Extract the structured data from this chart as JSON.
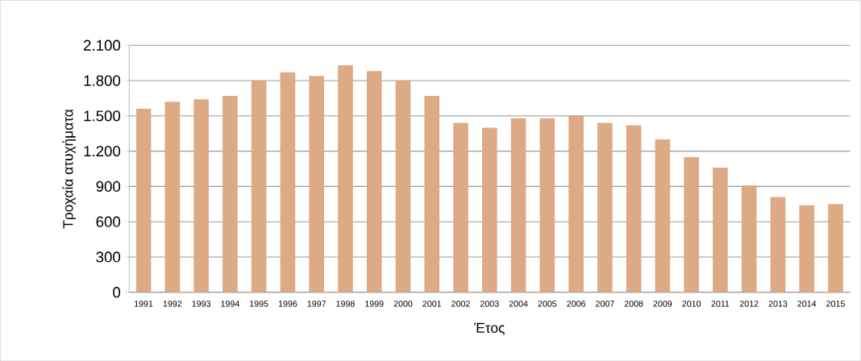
{
  "chart_data": {
    "type": "bar",
    "xlabel": "Έτος",
    "ylabel": "Τροχαία ατυχήματα",
    "categories": [
      "1991",
      "1992",
      "1993",
      "1994",
      "1995",
      "1996",
      "1997",
      "1998",
      "1999",
      "2000",
      "2001",
      "2002",
      "2003",
      "2004",
      "2005",
      "2006",
      "2007",
      "2008",
      "2009",
      "2010",
      "2011",
      "2012",
      "2013",
      "2014",
      "2015"
    ],
    "values": [
      1560,
      1620,
      1640,
      1670,
      1800,
      1870,
      1840,
      1930,
      1880,
      1800,
      1670,
      1440,
      1400,
      1480,
      1480,
      1500,
      1440,
      1420,
      1300,
      1150,
      1060,
      910,
      810,
      740,
      750
    ],
    "color": "#dcab86",
    "ylim": [
      0,
      2100
    ],
    "yticks": [
      0,
      300,
      600,
      900,
      {
        "value": 1200,
        "label": "1.200"
      },
      {
        "value": 1500,
        "label": "1.500"
      },
      {
        "value": 1800,
        "label": "1.800"
      },
      {
        "value": 2100,
        "label": "2.100"
      }
    ],
    "grid": "y"
  }
}
